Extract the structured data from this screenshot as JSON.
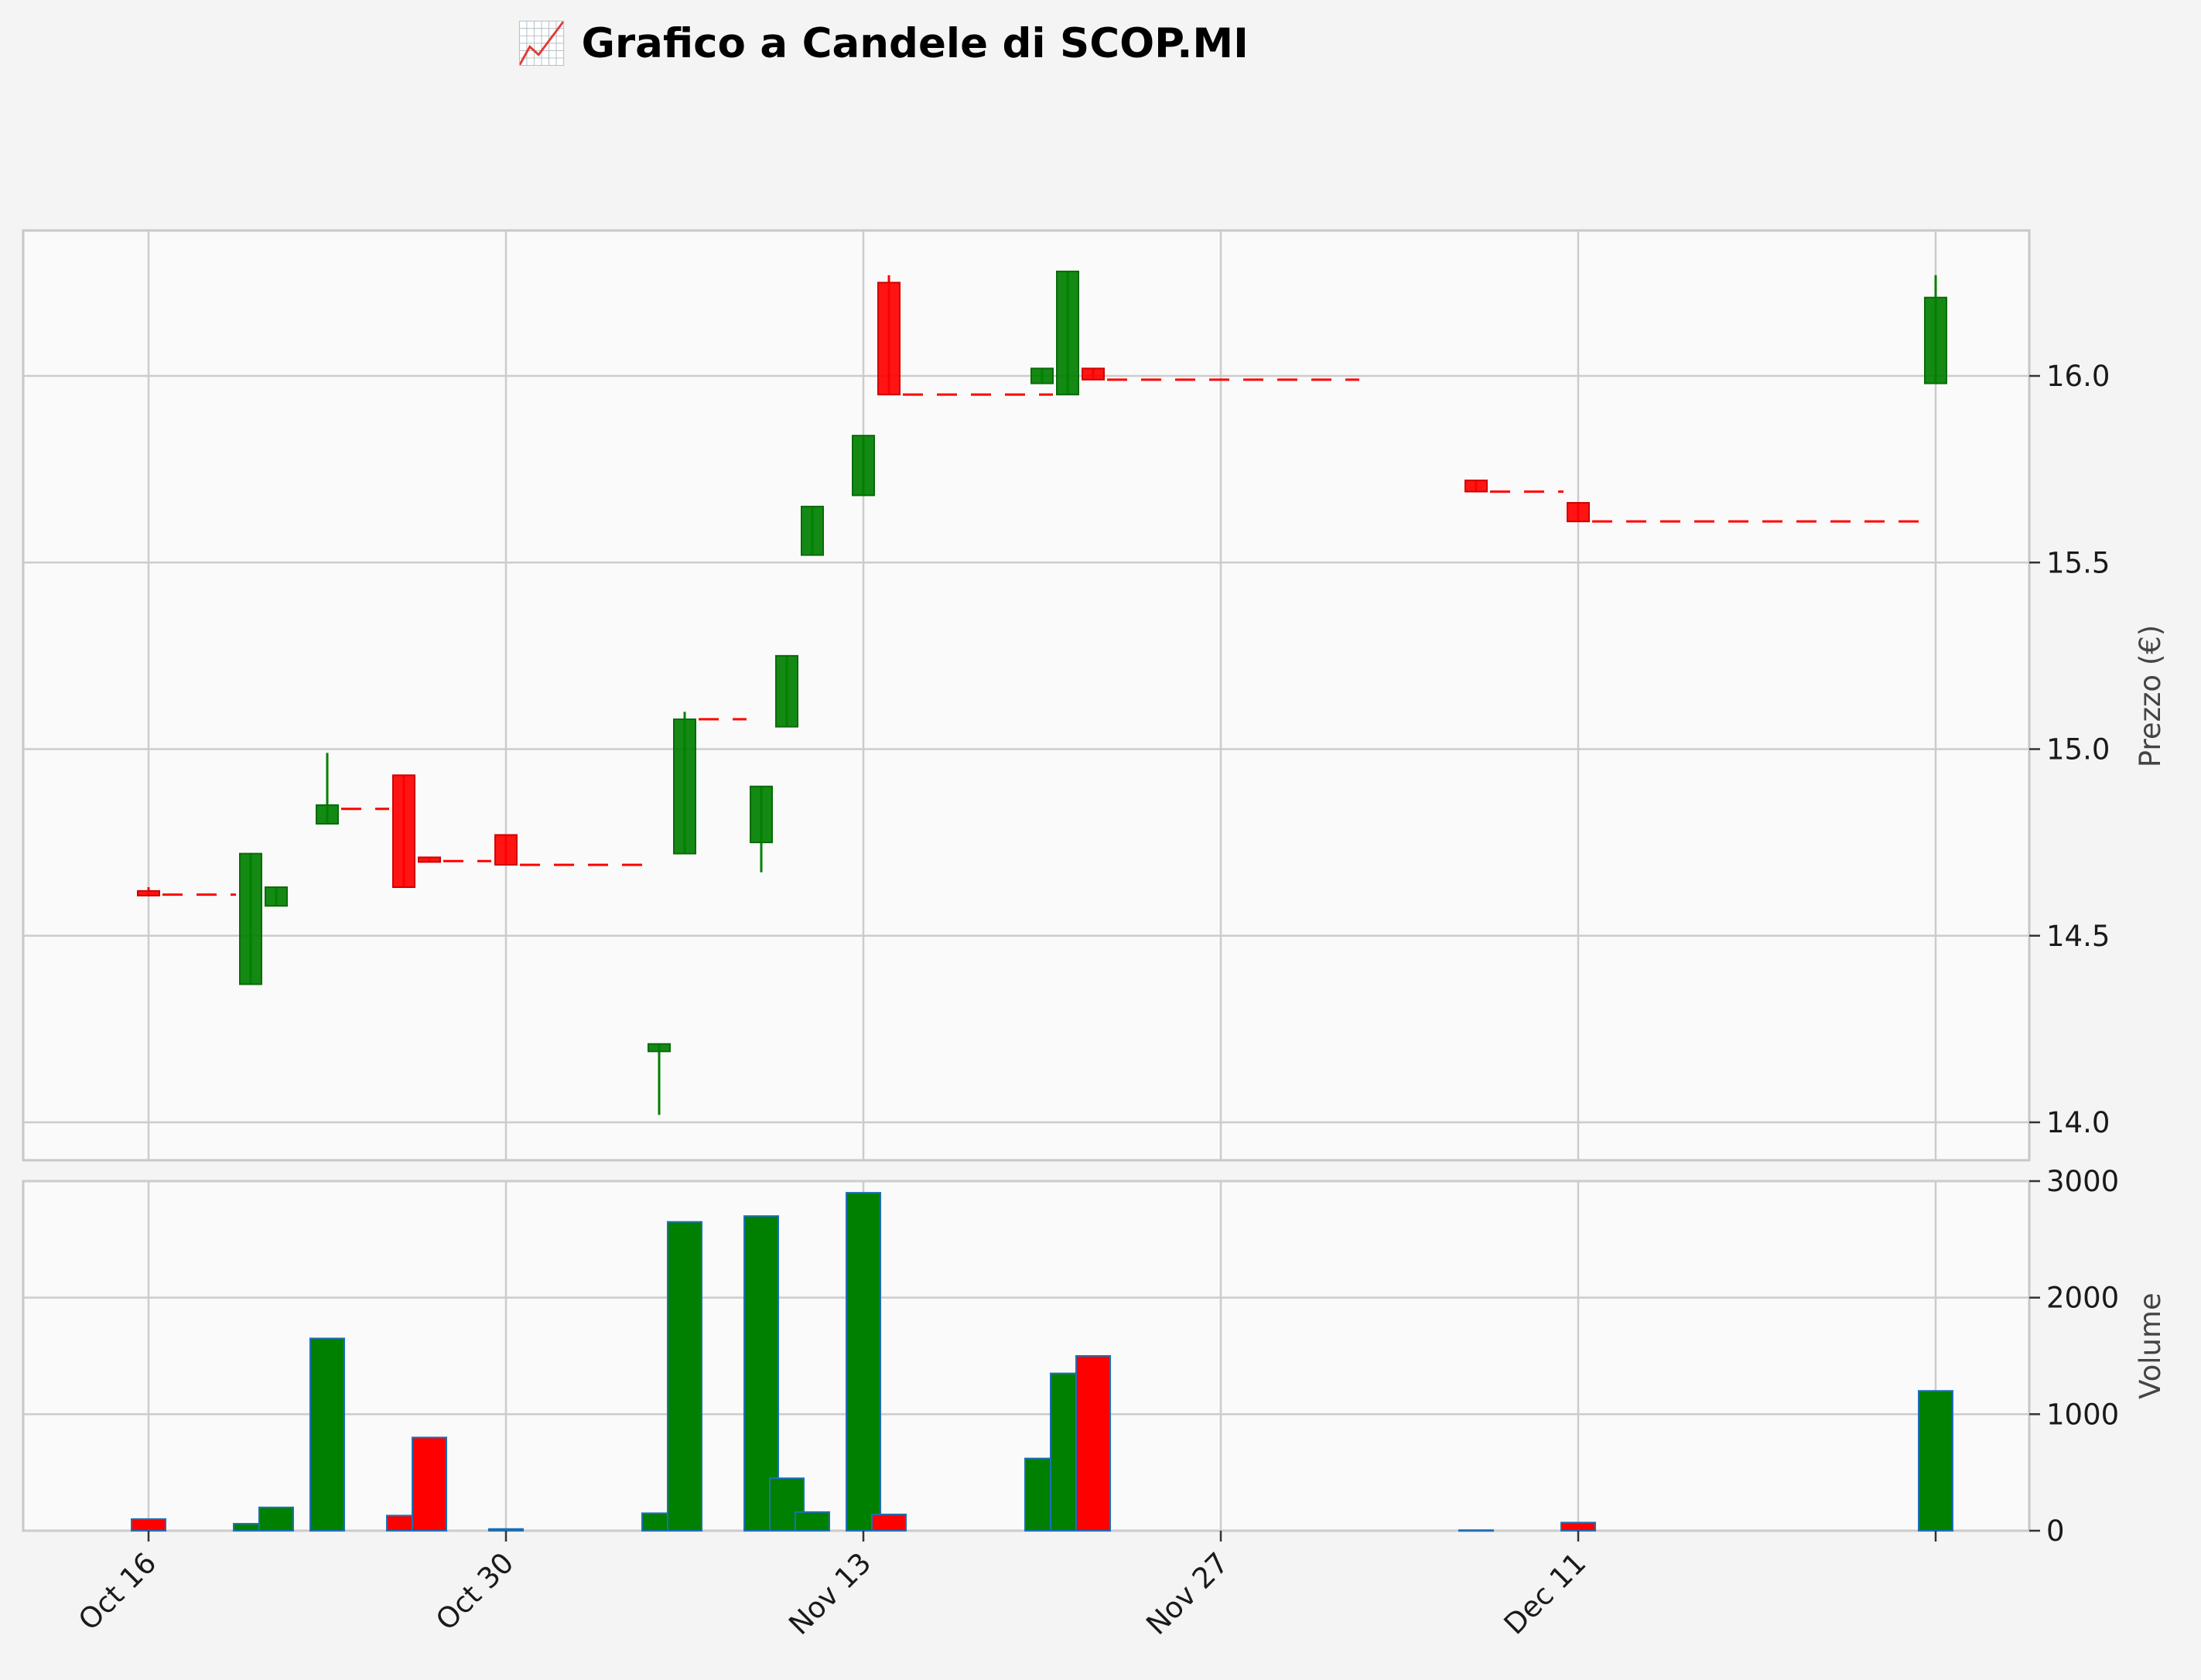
{
  "chart_data": {
    "type": "candlestick",
    "title": "📈 Grafico a Candele di SCOP.MI",
    "price_axis": {
      "label": "Prezzo (€)",
      "ticks": [
        14.0,
        14.5,
        15.0,
        15.5,
        16.0
      ],
      "tick_labels": [
        "14.0",
        "14.5",
        "15.0",
        "15.5",
        "16.0"
      ],
      "ylim": [
        13.9,
        16.5
      ]
    },
    "volume_axis": {
      "label": "Volume",
      "ticks": [
        0,
        1000,
        2000,
        3000
      ],
      "tick_labels": [
        "0",
        "1000",
        "2000",
        "3000"
      ],
      "ylim": [
        0,
        3000
      ]
    },
    "x_axis": {
      "tick_dates": [
        "2023-10-16",
        "2023-10-30",
        "2023-11-13",
        "2023-11-27",
        "2023-12-11",
        "2023-12-25"
      ],
      "tick_labels": [
        "Oct 16",
        "Oct 30",
        "Nov 13",
        "Nov 27",
        "Dec 11",
        ""
      ],
      "xlim": [
        "2023-10-16",
        "2023-12-28"
      ]
    },
    "grid": true,
    "colors": {
      "up": "#008000",
      "down": "#ff0000",
      "volume_edge": "#1f6fb4",
      "panel_bg": "#fafafa",
      "grid": "#cccccc",
      "axes": "#c8c8c8"
    },
    "candles": [
      {
        "date": "2023-10-16",
        "open": 14.62,
        "high": 14.63,
        "low": 14.61,
        "close": 14.61,
        "volume": 100
      },
      {
        "date": "2023-10-20",
        "open": 14.37,
        "high": 14.72,
        "low": 14.37,
        "close": 14.72,
        "volume": 60
      },
      {
        "date": "2023-10-21",
        "open": 14.58,
        "high": 14.63,
        "low": 14.58,
        "close": 14.63,
        "volume": 200
      },
      {
        "date": "2023-10-23",
        "open": 14.8,
        "high": 14.99,
        "low": 14.8,
        "close": 14.85,
        "volume": 1650
      },
      {
        "date": "2023-10-26",
        "open": 14.93,
        "high": 14.93,
        "low": 14.63,
        "close": 14.63,
        "volume": 130
      },
      {
        "date": "2023-10-27",
        "open": 14.71,
        "high": 14.71,
        "low": 14.7,
        "close": 14.7,
        "volume": 800
      },
      {
        "date": "2023-10-30",
        "open": 14.77,
        "high": 14.77,
        "low": 14.69,
        "close": 14.69,
        "volume": 15
      },
      {
        "date": "2023-11-05",
        "open": 14.19,
        "high": 14.21,
        "low": 14.02,
        "close": 14.21,
        "volume": 150
      },
      {
        "date": "2023-11-06",
        "open": 14.72,
        "high": 15.1,
        "low": 14.72,
        "close": 15.08,
        "volume": 2650
      },
      {
        "date": "2023-11-09",
        "open": 14.75,
        "high": 14.9,
        "low": 14.67,
        "close": 14.9,
        "volume": 2700
      },
      {
        "date": "2023-11-10",
        "open": 15.06,
        "high": 15.25,
        "low": 15.06,
        "close": 15.25,
        "volume": 450
      },
      {
        "date": "2023-11-11",
        "open": 15.52,
        "high": 15.65,
        "low": 15.52,
        "close": 15.65,
        "volume": 160
      },
      {
        "date": "2023-11-13",
        "open": 15.68,
        "high": 15.84,
        "low": 15.68,
        "close": 15.84,
        "volume": 2900
      },
      {
        "date": "2023-11-14",
        "open": 16.25,
        "high": 16.27,
        "low": 15.95,
        "close": 15.95,
        "volume": 140
      },
      {
        "date": "2023-11-20",
        "open": 15.98,
        "high": 16.02,
        "low": 15.98,
        "close": 16.02,
        "volume": 620
      },
      {
        "date": "2023-11-21",
        "open": 15.95,
        "high": 16.28,
        "low": 15.95,
        "close": 16.28,
        "volume": 1350
      },
      {
        "date": "2023-11-22",
        "open": 16.02,
        "high": 16.02,
        "low": 15.99,
        "close": 15.99,
        "volume": 1500
      },
      {
        "date": "2023-12-07",
        "open": 15.72,
        "high": 15.72,
        "low": 15.69,
        "close": 15.69,
        "volume": 5
      },
      {
        "date": "2023-12-11",
        "open": 15.66,
        "high": 15.66,
        "low": 15.61,
        "close": 15.61,
        "volume": 70
      },
      {
        "date": "2023-12-25",
        "open": 15.98,
        "high": 16.27,
        "low": 15.98,
        "close": 16.21,
        "volume": 1200
      }
    ],
    "dashed_lines": [
      {
        "from": "2023-10-16",
        "to": "2023-10-19",
        "value": 14.61
      },
      {
        "from": "2023-10-23",
        "to": "2023-10-25",
        "value": 14.84
      },
      {
        "from": "2023-10-27",
        "to": "2023-10-29",
        "value": 14.7
      },
      {
        "from": "2023-10-30",
        "to": "2023-11-04",
        "value": 14.69
      },
      {
        "from": "2023-11-06",
        "to": "2023-11-08",
        "value": 15.08
      },
      {
        "from": "2023-11-14",
        "to": "2023-11-20",
        "value": 15.95
      },
      {
        "from": "2023-11-22",
        "to": "2023-12-02",
        "value": 15.99
      },
      {
        "from": "2023-12-07",
        "to": "2023-12-10",
        "value": 15.69
      },
      {
        "from": "2023-12-11",
        "to": "2023-12-24",
        "value": 15.61
      }
    ]
  }
}
